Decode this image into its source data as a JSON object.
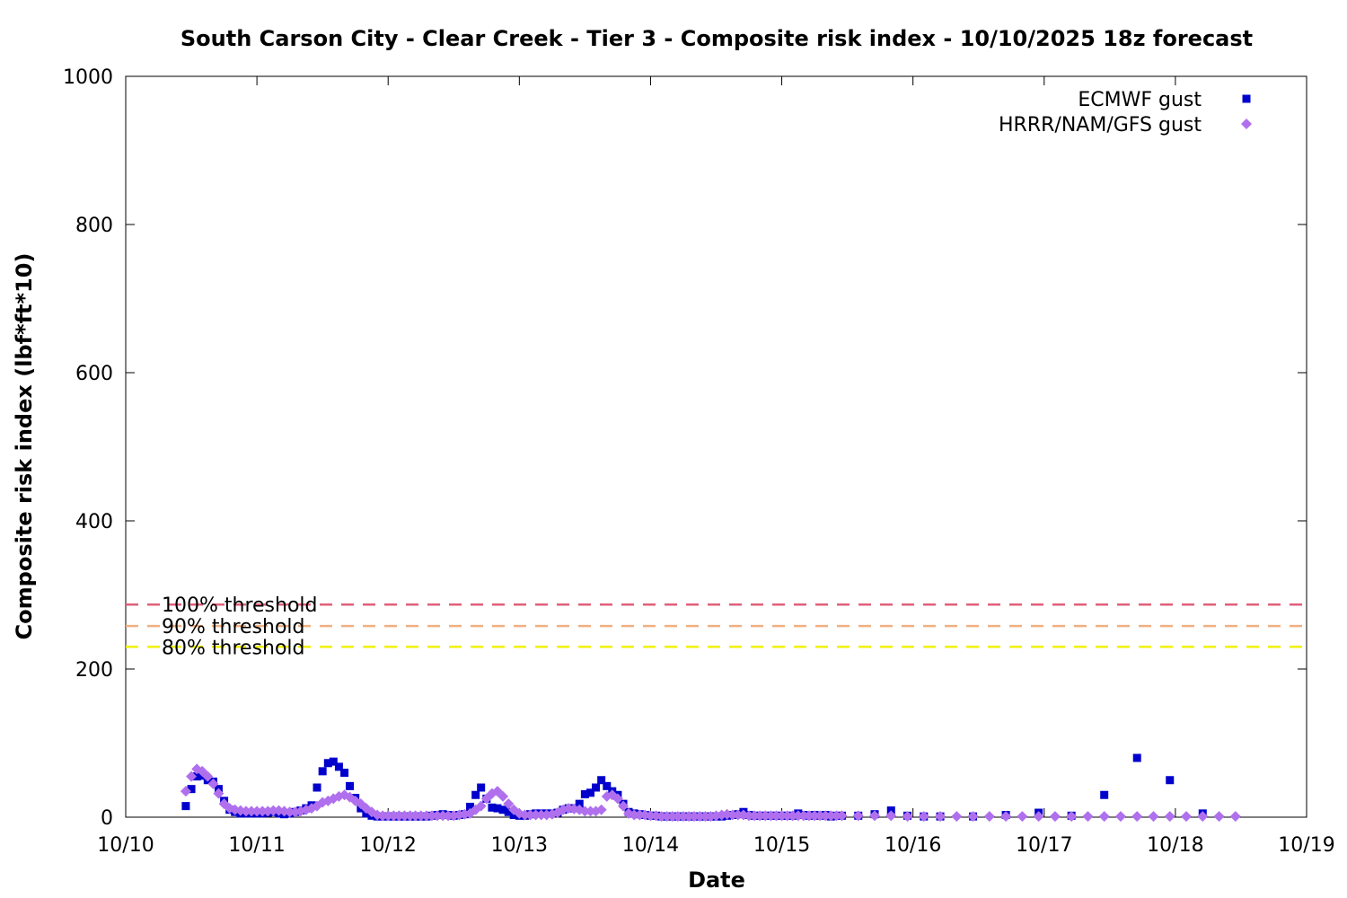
{
  "chart_data": {
    "type": "scatter",
    "title": "South Carson City - Clear Creek - Tier 3 - Composite risk index - 10/10/2025 18z forecast",
    "xlabel": "Date",
    "ylabel": "Composite risk index (lbf*ft*10)",
    "x_unit": "days after 10/10 00z",
    "xlim": [
      0,
      9
    ],
    "ylim": [
      0,
      1000
    ],
    "x_tick_labels": [
      "10/10",
      "10/11",
      "10/12",
      "10/13",
      "10/14",
      "10/15",
      "10/16",
      "10/17",
      "10/18",
      "10/19"
    ],
    "y_ticks": [
      0,
      200,
      400,
      600,
      800,
      1000
    ],
    "y_tick_labels": [
      "0",
      "200",
      "400",
      "600",
      "800",
      "1000"
    ],
    "legend_position": "top-right",
    "grid": false,
    "thresholds": [
      {
        "name": "100% threshold",
        "value": 287,
        "color": "#e0607a"
      },
      {
        "name": "90% threshold",
        "value": 258,
        "color": "#f0b080"
      },
      {
        "name": "80% threshold",
        "value": 230,
        "color": "#f0f000"
      }
    ],
    "series": [
      {
        "name": "ECMWF gust",
        "color": "#0000cc",
        "marker": "square",
        "x": [
          0.458,
          0.5,
          0.542,
          0.583,
          0.625,
          0.667,
          0.708,
          0.75,
          0.792,
          0.833,
          0.875,
          0.917,
          0.958,
          1.0,
          1.042,
          1.083,
          1.125,
          1.167,
          1.208,
          1.25,
          1.292,
          1.333,
          1.375,
          1.417,
          1.458,
          1.5,
          1.542,
          1.583,
          1.625,
          1.667,
          1.708,
          1.75,
          1.792,
          1.833,
          1.875,
          1.917,
          1.958,
          2.0,
          2.042,
          2.083,
          2.125,
          2.167,
          2.208,
          2.25,
          2.292,
          2.333,
          2.375,
          2.417,
          2.458,
          2.5,
          2.542,
          2.583,
          2.625,
          2.667,
          2.708,
          2.75,
          2.792,
          2.833,
          2.875,
          2.917,
          2.958,
          3.0,
          3.042,
          3.083,
          3.125,
          3.167,
          3.208,
          3.25,
          3.292,
          3.333,
          3.375,
          3.417,
          3.458,
          3.5,
          3.542,
          3.583,
          3.625,
          3.667,
          3.708,
          3.75,
          3.792,
          3.833,
          3.875,
          3.917,
          3.958,
          4.0,
          4.042,
          4.083,
          4.125,
          4.167,
          4.208,
          4.25,
          4.292,
          4.333,
          4.375,
          4.417,
          4.458,
          4.5,
          4.542,
          4.583,
          4.625,
          4.667,
          4.708,
          4.75,
          4.792,
          4.833,
          4.875,
          4.917,
          4.958,
          5.0,
          5.042,
          5.083,
          5.125,
          5.167,
          5.208,
          5.25,
          5.292,
          5.333,
          5.375,
          5.417,
          5.458,
          5.583,
          5.708,
          5.833,
          5.958,
          6.083,
          6.208,
          6.458,
          6.708,
          6.958,
          7.208,
          7.458,
          7.708,
          7.958,
          8.208
        ],
        "y": [
          15,
          38,
          55,
          56,
          50,
          48,
          38,
          22,
          10,
          7,
          5,
          5,
          5,
          5,
          5,
          6,
          7,
          5,
          4,
          5,
          7,
          9,
          12,
          16,
          40,
          62,
          73,
          75,
          68,
          60,
          42,
          26,
          12,
          5,
          2,
          1,
          1,
          1,
          1,
          1,
          1,
          1,
          1,
          1,
          1,
          2,
          3,
          4,
          3,
          2,
          3,
          4,
          14,
          30,
          40,
          25,
          13,
          12,
          10,
          7,
          3,
          2,
          2,
          4,
          5,
          5,
          5,
          5,
          6,
          10,
          12,
          12,
          18,
          31,
          33,
          40,
          50,
          42,
          35,
          30,
          18,
          7,
          5,
          4,
          3,
          2,
          2,
          1,
          1,
          1,
          1,
          1,
          1,
          1,
          1,
          1,
          1,
          1,
          1,
          2,
          3,
          4,
          7,
          3,
          2,
          2,
          2,
          2,
          2,
          2,
          2,
          2,
          5,
          3,
          2,
          3,
          2,
          3,
          1,
          2,
          2,
          2,
          4,
          9,
          2,
          1,
          1,
          1,
          3,
          6,
          2,
          30,
          80,
          50,
          5
        ]
      },
      {
        "name": "HRRR/NAM/GFS gust",
        "color": "#b070ee",
        "marker": "diamond",
        "x": [
          0.458,
          0.5,
          0.542,
          0.583,
          0.625,
          0.667,
          0.708,
          0.75,
          0.792,
          0.833,
          0.875,
          0.917,
          0.958,
          1.0,
          1.042,
          1.083,
          1.125,
          1.167,
          1.208,
          1.25,
          1.292,
          1.333,
          1.375,
          1.417,
          1.458,
          1.5,
          1.542,
          1.583,
          1.625,
          1.667,
          1.708,
          1.75,
          1.792,
          1.833,
          1.875,
          1.917,
          1.958,
          2.0,
          2.042,
          2.083,
          2.125,
          2.167,
          2.208,
          2.25,
          2.292,
          2.333,
          2.375,
          2.417,
          2.458,
          2.5,
          2.542,
          2.583,
          2.625,
          2.667,
          2.708,
          2.75,
          2.792,
          2.833,
          2.875,
          2.917,
          2.958,
          3.0,
          3.042,
          3.083,
          3.125,
          3.167,
          3.208,
          3.25,
          3.292,
          3.333,
          3.375,
          3.417,
          3.458,
          3.5,
          3.542,
          3.583,
          3.625,
          3.667,
          3.708,
          3.75,
          3.792,
          3.833,
          3.875,
          3.917,
          3.958,
          4.0,
          4.042,
          4.083,
          4.125,
          4.167,
          4.208,
          4.25,
          4.292,
          4.333,
          4.375,
          4.417,
          4.458,
          4.5,
          4.542,
          4.583,
          4.625,
          4.667,
          4.708,
          4.75,
          4.792,
          4.833,
          4.875,
          4.917,
          4.958,
          5.0,
          5.042,
          5.083,
          5.125,
          5.167,
          5.208,
          5.25,
          5.292,
          5.333,
          5.375,
          5.417,
          5.458,
          5.583,
          5.708,
          5.833,
          5.958,
          6.083,
          6.208,
          6.333,
          6.458,
          6.583,
          6.708,
          6.833,
          6.958,
          7.083,
          7.208,
          7.333,
          7.458,
          7.583,
          7.708,
          7.833,
          7.958,
          8.083,
          8.208,
          8.333,
          8.458
        ],
        "y": [
          35,
          55,
          65,
          62,
          55,
          45,
          32,
          18,
          12,
          10,
          9,
          8,
          8,
          8,
          8,
          8,
          9,
          9,
          8,
          7,
          7,
          8,
          10,
          12,
          15,
          20,
          22,
          25,
          28,
          30,
          27,
          22,
          18,
          12,
          7,
          3,
          2,
          2,
          2,
          2,
          2,
          2,
          2,
          2,
          2,
          2,
          2,
          2,
          2,
          2,
          3,
          4,
          5,
          10,
          15,
          25,
          32,
          35,
          28,
          18,
          10,
          5,
          3,
          3,
          3,
          3,
          3,
          4,
          6,
          10,
          12,
          11,
          10,
          8,
          8,
          8,
          10,
          28,
          30,
          25,
          15,
          5,
          3,
          3,
          3,
          2,
          2,
          1,
          1,
          1,
          1,
          1,
          1,
          1,
          1,
          1,
          1,
          2,
          3,
          4,
          3,
          3,
          3,
          2,
          2,
          2,
          2,
          2,
          2,
          2,
          2,
          2,
          2,
          2,
          2,
          2,
          2,
          2,
          2,
          2,
          2,
          2,
          2,
          2,
          1,
          1,
          1,
          1,
          1,
          1,
          1,
          1,
          1,
          1,
          1,
          1,
          1,
          1,
          1,
          1,
          1,
          1,
          1,
          1,
          1
        ]
      }
    ]
  }
}
